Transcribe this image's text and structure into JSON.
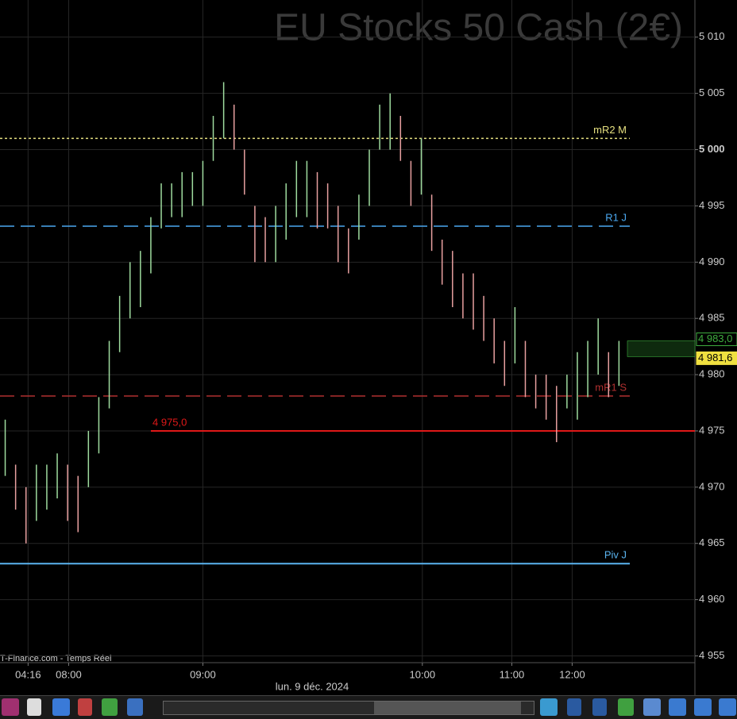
{
  "title": "EU Stocks 50 Cash (2€)",
  "source": "T-Finance.com - Temps Réel",
  "date_label": "lun. 9 déc. 2024",
  "chart_data": {
    "type": "hilo",
    "grid": true,
    "xlim": [
      -0.5,
      66.3
    ],
    "ylim": [
      4954.4,
      5013.3
    ],
    "xticks": [
      {
        "value": 2.2,
        "label": "04:16"
      },
      {
        "value": 6.1,
        "label": "08:00"
      },
      {
        "value": 19.0,
        "label": "09:00"
      },
      {
        "value": 40.1,
        "label": "10:00"
      },
      {
        "value": 48.7,
        "label": "11:00"
      },
      {
        "value": 54.5,
        "label": "12:00"
      }
    ],
    "yticks": [
      {
        "value": 4955,
        "label": "4 955"
      },
      {
        "value": 4960,
        "label": "4 960"
      },
      {
        "value": 4965,
        "label": "4 965"
      },
      {
        "value": 4970,
        "label": "4 970"
      },
      {
        "value": 4975,
        "label": "4 975"
      },
      {
        "value": 4980,
        "label": "4 980"
      },
      {
        "value": 4985,
        "label": "4 985"
      },
      {
        "value": 4990,
        "label": "4 990"
      },
      {
        "value": 4995,
        "label": "4 995"
      },
      {
        "value": 5000,
        "label": "5 000"
      },
      {
        "value": 5005,
        "label": "5 005"
      },
      {
        "value": 5010,
        "label": "5 010"
      }
    ],
    "up_color": "#9fdc9f",
    "down_color": "#e8a0a0",
    "high": [
      4976,
      4972,
      4970,
      4972,
      4972,
      4973,
      4972,
      4971,
      4975,
      4978,
      4983,
      4987,
      4990,
      4991,
      4994,
      4997,
      4997,
      4998,
      4998,
      4999,
      5003,
      5006,
      5004,
      5000,
      4995,
      4994,
      4995,
      4997,
      4999,
      4999,
      4998,
      4997,
      4995,
      4993,
      4996,
      5000,
      5004,
      5005,
      5003,
      4999,
      5001,
      4996,
      4992,
      4991,
      4989,
      4989,
      4987,
      4985,
      4983,
      4986,
      4983,
      4980,
      4980,
      4979,
      4980,
      4982,
      4983,
      4985,
      4982,
      4983
    ],
    "low": [
      4971,
      4968,
      4965,
      4967,
      4968,
      4969,
      4967,
      4966,
      4970,
      4973,
      4977,
      4982,
      4985,
      4986,
      4989,
      4993,
      4994,
      4994,
      4995,
      4995,
      4999,
      5001,
      5000,
      4996,
      4990,
      4990,
      4990,
      4992,
      4994,
      4994,
      4993,
      4993,
      4990,
      4989,
      4992,
      4995,
      5000,
      5000,
      4999,
      4995,
      4996,
      4991,
      4988,
      4986,
      4985,
      4984,
      4983,
      4981,
      4979,
      4981,
      4978,
      4977,
      4976,
      4974,
      4977,
      4976,
      4978,
      4980,
      4978,
      4979
    ],
    "levels": [
      {
        "name": "mR2 M",
        "value": 5001,
        "color": "#e6e080",
        "style": "dotted"
      },
      {
        "name": "R1 J",
        "value": 4993.2,
        "color": "#4aa8f0",
        "style": "dashed"
      },
      {
        "name": "mR1 S",
        "value": 4978.1,
        "color": "#b03030",
        "style": "dashed"
      },
      {
        "name": "Piv J",
        "value": 4963.2,
        "color": "#5ab4f0",
        "style": "solid"
      },
      {
        "value": 4975.0,
        "label": "4 975,0",
        "color": "#e01818",
        "style": "solid"
      }
    ],
    "price_tags": [
      {
        "value": 4983.0,
        "label": "4 983,0",
        "color": "#3fae3f"
      },
      {
        "value": 4981.6,
        "label": "4 981,6",
        "color": "#f0e040"
      }
    ]
  }
}
